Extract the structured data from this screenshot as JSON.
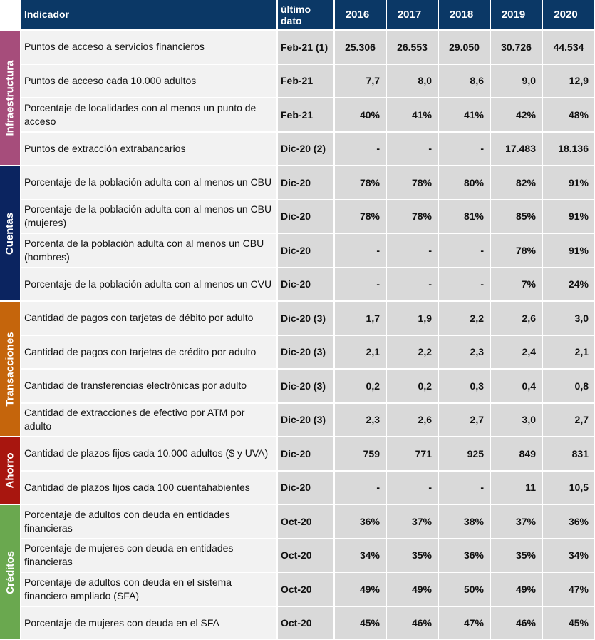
{
  "header": {
    "indicator": "Indicador",
    "last": "último dato",
    "years": [
      "2016",
      "2017",
      "2018",
      "2019",
      "2020"
    ]
  },
  "groups": [
    {
      "name": "Infraestructura",
      "color": "#a64d7b",
      "rows": [
        {
          "indicator": "Puntos de acceso a servicios financieros",
          "last": "Feb-21 (1)",
          "values": [
            "25.306",
            "26.553",
            "29.050",
            "30.726",
            "44.534"
          ]
        },
        {
          "indicator": "Puntos de acceso cada 10.000 adultos",
          "last": "Feb-21",
          "values": [
            "7,7",
            "8,0",
            "8,6",
            "9,0",
            "12,9"
          ]
        },
        {
          "indicator": "Porcentaje de localidades con al menos un punto de acceso",
          "last": "Feb-21",
          "values": [
            "40%",
            "41%",
            "41%",
            "42%",
            "48%"
          ]
        },
        {
          "indicator": "Puntos de extracción extrabancarios",
          "last": "Dic-20 (2)",
          "values": [
            "-",
            "-",
            "-",
            "17.483",
            "18.136"
          ]
        }
      ]
    },
    {
      "name": "Cuentas",
      "color": "#0b2460",
      "rows": [
        {
          "indicator": "Porcentaje de la población adulta con al menos un CBU",
          "last": "Dic-20",
          "values": [
            "78%",
            "78%",
            "80%",
            "82%",
            "91%"
          ]
        },
        {
          "indicator": "Porcentaje de la población adulta con al menos un CBU (mujeres)",
          "last": "Dic-20",
          "values": [
            "78%",
            "78%",
            "81%",
            "85%",
            "91%"
          ]
        },
        {
          "indicator": "Porcenta de la población adulta con al menos un CBU (hombres)",
          "last": "Dic-20",
          "values": [
            "-",
            "-",
            "-",
            "78%",
            "91%"
          ]
        },
        {
          "indicator": "Porcentaje de la población adulta con al menos un CVU",
          "last": "Dic-20",
          "values": [
            "-",
            "-",
            "-",
            "7%",
            "24%"
          ]
        }
      ]
    },
    {
      "name": "Transacciones",
      "color": "#c5650c",
      "rows": [
        {
          "indicator": "Cantidad de pagos con tarjetas de débito por adulto",
          "last": "Dic-20 (3)",
          "values": [
            "1,7",
            "1,9",
            "2,2",
            "2,6",
            "3,0"
          ]
        },
        {
          "indicator": "Cantidad de pagos con tarjetas de crédito por adulto",
          "last": "Dic-20 (3)",
          "values": [
            "2,1",
            "2,2",
            "2,3",
            "2,4",
            "2,1"
          ]
        },
        {
          "indicator": "Cantidad de transferencias electrónicas por adulto",
          "last": "Dic-20 (3)",
          "values": [
            "0,2",
            "0,2",
            "0,3",
            "0,4",
            "0,8"
          ]
        },
        {
          "indicator": "Cantidad de extracciones de efectivo por ATM por adulto",
          "last": "Dic-20 (3)",
          "values": [
            "2,3",
            "2,6",
            "2,7",
            "3,0",
            "2,7"
          ]
        }
      ]
    },
    {
      "name": "Ahorro",
      "color": "#a8160f",
      "rows": [
        {
          "indicator": "Cantidad de plazos fijos cada 10.000 adultos ($ y UVA)",
          "last": "Dic-20",
          "values": [
            "759",
            "771",
            "925",
            "849",
            "831"
          ]
        },
        {
          "indicator": "Cantidad de plazos fijos cada 100 cuentahabientes",
          "last": "Dic-20",
          "values": [
            "-",
            "-",
            "-",
            "11",
            "10,5"
          ]
        }
      ]
    },
    {
      "name": "Créditos",
      "color": "#6aa84f",
      "rows": [
        {
          "indicator": "Porcentaje de adultos con deuda en entidades financieras",
          "last": "Oct-20",
          "values": [
            "36%",
            "37%",
            "38%",
            "37%",
            "36%"
          ]
        },
        {
          "indicator": "Porcentaje de mujeres con deuda en entidades financieras",
          "last": "Oct-20",
          "values": [
            "34%",
            "35%",
            "36%",
            "35%",
            "34%"
          ]
        },
        {
          "indicator": "Porcentaje de adultos con deuda en el sistema financiero ampliado (SFA)",
          "last": "Oct-20",
          "values": [
            "49%",
            "49%",
            "50%",
            "49%",
            "47%"
          ]
        },
        {
          "indicator": "Porcentaje de mujeres con deuda en el SFA",
          "last": "Oct-20",
          "values": [
            "45%",
            "46%",
            "47%",
            "46%",
            "45%"
          ]
        }
      ]
    }
  ]
}
